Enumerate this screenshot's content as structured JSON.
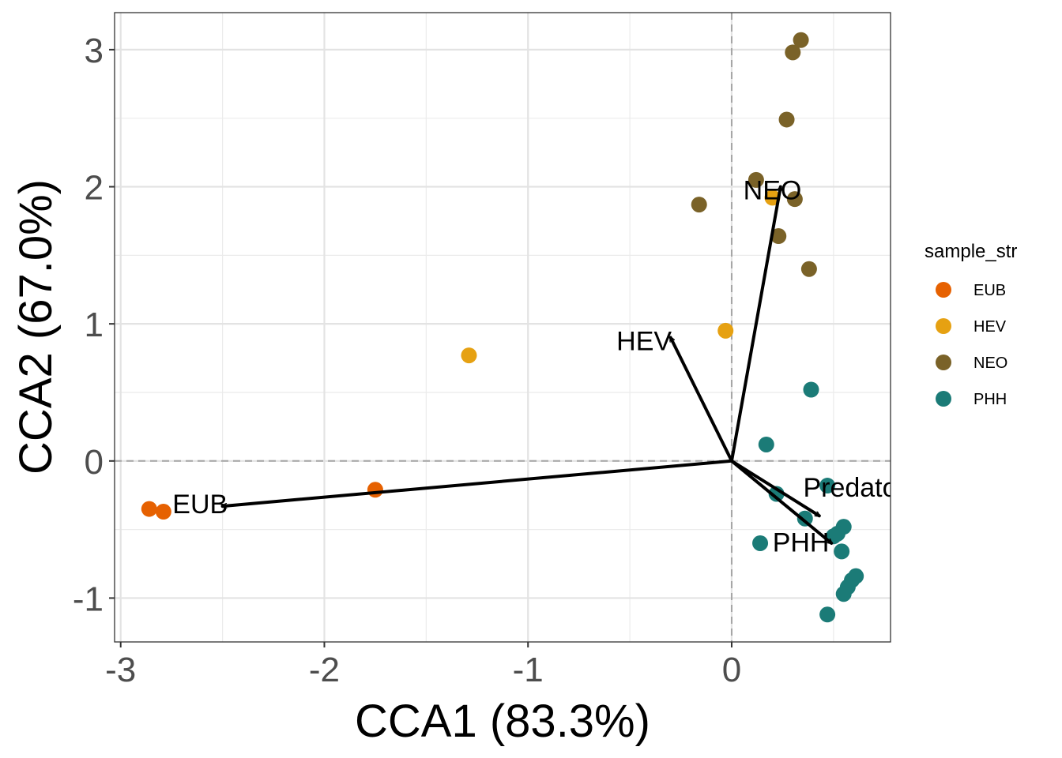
{
  "chart_data": {
    "type": "scatter",
    "title": "",
    "xlabel": "CCA1 (83.3%)",
    "ylabel": "CCA2 (67.0%)",
    "xlim": [
      -3.03,
      0.78
    ],
    "ylim": [
      -1.32,
      3.27
    ],
    "x_ticks": [
      -3,
      -2,
      -1,
      0
    ],
    "x_tick_labels": [
      "-3",
      "-2",
      "-1",
      "0"
    ],
    "y_ticks": [
      -1,
      0,
      1,
      2,
      3
    ],
    "y_tick_labels": [
      "-1",
      "0",
      "1",
      "2",
      "3"
    ],
    "grid": true,
    "reference_lines": {
      "x": 0,
      "y": 0,
      "style": "dashed"
    },
    "legend": {
      "title": "sample_str",
      "position": "right"
    },
    "series": [
      {
        "name": "EUB",
        "color": "#E66101",
        "points": [
          [
            -2.86,
            -0.35
          ],
          [
            -2.79,
            -0.37
          ],
          [
            -1.75,
            -0.21
          ]
        ]
      },
      {
        "name": "HEV",
        "color": "#E6A112",
        "points": [
          [
            -1.29,
            0.77
          ],
          [
            -0.03,
            0.95
          ],
          [
            0.2,
            1.92
          ]
        ]
      },
      {
        "name": "NEO",
        "color": "#7A6228",
        "points": [
          [
            0.34,
            3.07
          ],
          [
            0.3,
            2.98
          ],
          [
            0.27,
            2.49
          ],
          [
            0.12,
            2.05
          ],
          [
            0.31,
            1.91
          ],
          [
            -0.16,
            1.87
          ],
          [
            0.23,
            1.64
          ],
          [
            0.38,
            1.4
          ]
        ]
      },
      {
        "name": "PHH",
        "color": "#1B7B77",
        "points": [
          [
            0.39,
            0.52
          ],
          [
            0.17,
            0.12
          ],
          [
            0.47,
            -0.18
          ],
          [
            0.22,
            -0.24
          ],
          [
            0.36,
            -0.42
          ],
          [
            0.14,
            -0.6
          ],
          [
            0.55,
            -0.48
          ],
          [
            0.52,
            -0.53
          ],
          [
            0.5,
            -0.55
          ],
          [
            0.54,
            -0.66
          ],
          [
            0.61,
            -0.84
          ],
          [
            0.59,
            -0.87
          ],
          [
            0.57,
            -0.92
          ],
          [
            0.55,
            -0.97
          ],
          [
            0.47,
            -1.12
          ]
        ]
      }
    ],
    "arrows": [
      {
        "label": "NEO",
        "x": 0.24,
        "y": 2.0,
        "label_x": 0.2,
        "label_y": 1.96
      },
      {
        "label": "HEV",
        "x": -0.3,
        "y": 0.9,
        "label_x": -0.43,
        "label_y": 0.86
      },
      {
        "label": "EUB",
        "x": -2.5,
        "y": -0.33,
        "label_x": -2.61,
        "label_y": -0.33
      },
      {
        "label": "Predator mass",
        "x": 0.43,
        "y": -0.4,
        "label_x": 0.78,
        "label_y": -0.21
      },
      {
        "label": "PHH",
        "x": 0.49,
        "y": -0.6,
        "label_x": 0.34,
        "label_y": -0.61
      }
    ]
  }
}
